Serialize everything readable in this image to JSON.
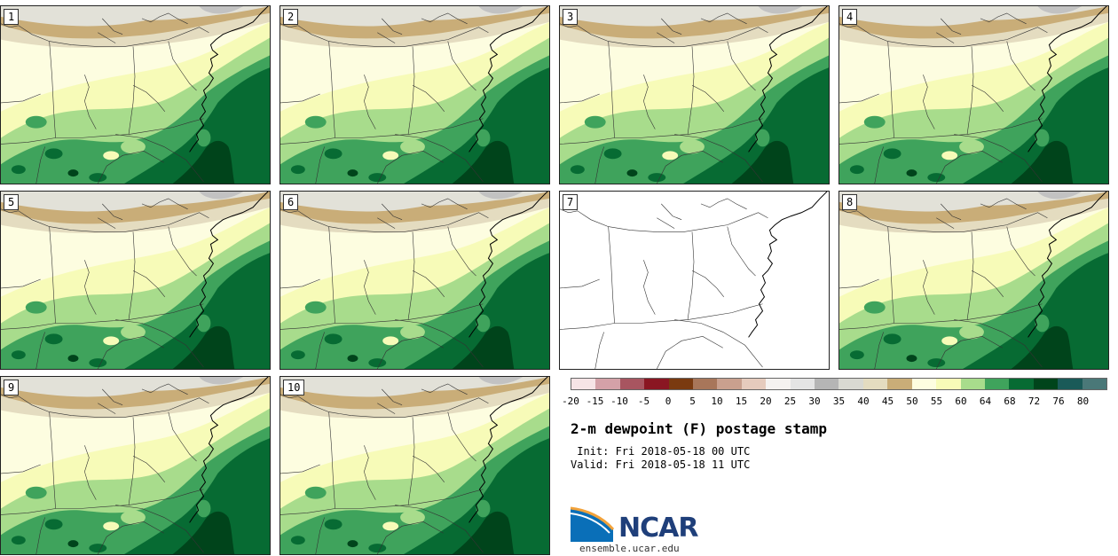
{
  "title": "2-m dewpoint (F) postage stamp",
  "init": " Init: Fri 2018-05-18 00 UTC",
  "valid": "Valid: Fri 2018-05-18 11 UTC",
  "logo": {
    "name": "NCAR",
    "url": "ensemble.ucar.edu"
  },
  "panels": [
    {
      "label": "1",
      "has_data": true
    },
    {
      "label": "2",
      "has_data": true
    },
    {
      "label": "3",
      "has_data": true
    },
    {
      "label": "4",
      "has_data": true
    },
    {
      "label": "5",
      "has_data": true
    },
    {
      "label": "6",
      "has_data": true
    },
    {
      "label": "7",
      "has_data": false
    },
    {
      "label": "8",
      "has_data": true
    },
    {
      "label": "9",
      "has_data": true
    },
    {
      "label": "10",
      "has_data": true
    }
  ],
  "colorbar": {
    "ticks": [
      "-20",
      "-15",
      "-10",
      "-5",
      "0",
      "5",
      "10",
      "15",
      "20",
      "25",
      "30",
      "35",
      "40",
      "45",
      "50",
      "55",
      "60",
      "64",
      "68",
      "72",
      "76",
      "80"
    ],
    "colors": [
      "#f6e4e6",
      "#d4a1a8",
      "#a85560",
      "#8a1622",
      "#7a3a10",
      "#a8765a",
      "#c9a08e",
      "#e6cbbd",
      "#f5f2f0",
      "#e4e4e4",
      "#b5b5b5",
      "#d9d9d2",
      "#e4dcc0",
      "#c9ad78",
      "#fdfde0",
      "#f7fbb8",
      "#a8dc8c",
      "#3fa35c",
      "#076b33",
      "#00441b",
      "#1a5a58",
      "#4a7878"
    ]
  },
  "map_colors": {
    "gray": "#c2c2c2",
    "light_gray": "#e2e1d8",
    "tan": "#c9ad78",
    "light_tan": "#e4dcc0",
    "cream": "#fdfde0",
    "yellow": "#f7fbb8",
    "light_green": "#a8dc8c",
    "green": "#3fa35c",
    "dark_green": "#076b33",
    "darkest_green": "#00441b"
  }
}
